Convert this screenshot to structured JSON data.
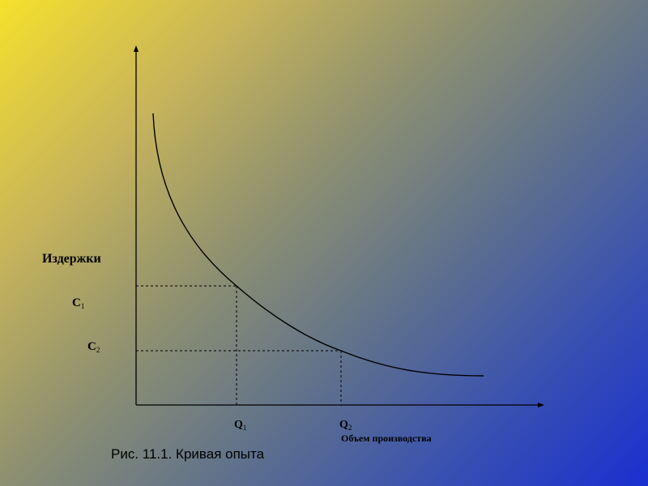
{
  "y_axis": {
    "label": "Издержки",
    "levels": [
      {
        "letter": "C",
        "sub": "1"
      },
      {
        "letter": "C",
        "sub": "2"
      }
    ]
  },
  "x_axis": {
    "label": "Объем производства",
    "levels": [
      {
        "letter": "Q",
        "sub": "1"
      },
      {
        "letter": "Q",
        "sub": "2"
      }
    ]
  },
  "caption": "Рис. 11.1. Кривая опыта",
  "colors": {
    "line": "#000000",
    "gradient_start": "#f5e12c",
    "gradient_end": "#1a2fd0"
  }
}
